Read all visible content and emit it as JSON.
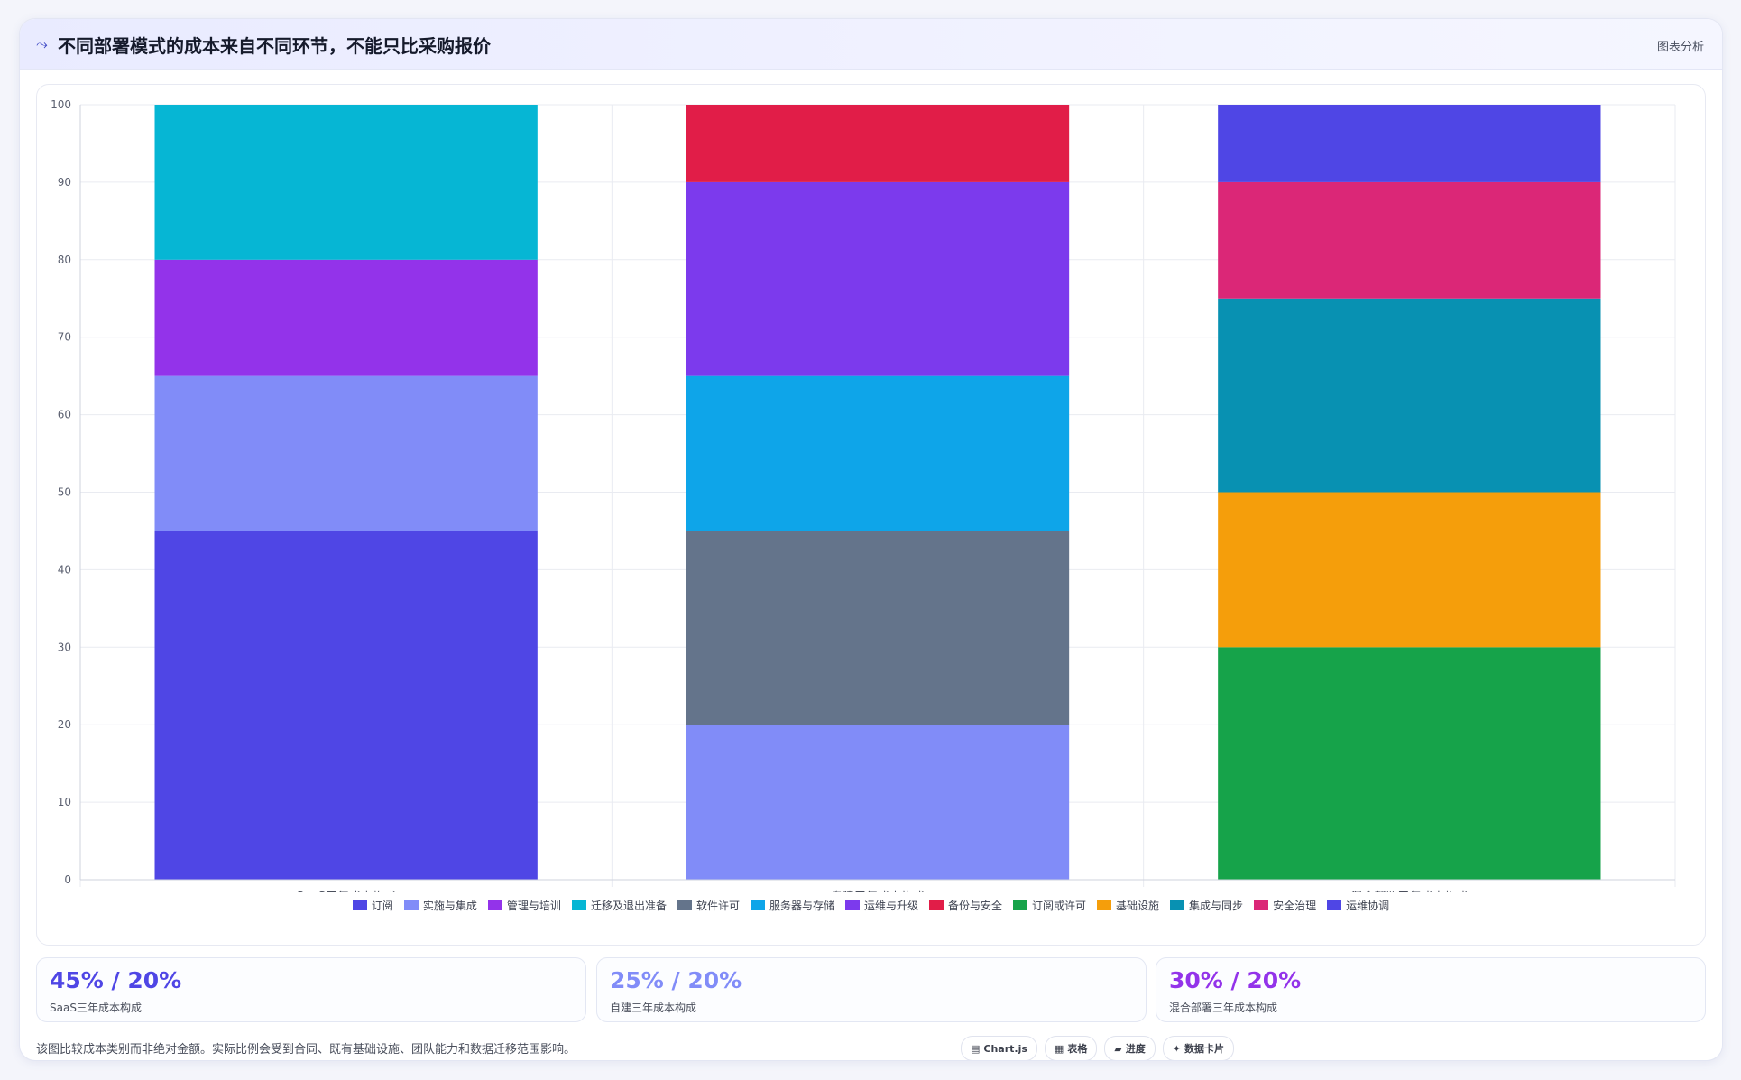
{
  "header": {
    "icon": "trend-line-icon",
    "title": "不同部署模式的成本来自不同环节，不能只比采购报价",
    "tag": "图表分析"
  },
  "chart_data": {
    "type": "bar",
    "stacked": true,
    "categories": [
      "SaaS三年成本构成",
      "自建三年成本构成",
      "混合部署三年成本构成"
    ],
    "ylim": [
      0,
      100
    ],
    "yticks": [
      0,
      10,
      20,
      30,
      40,
      50,
      60,
      70,
      80,
      90,
      100
    ],
    "grid": true,
    "legend_position": "bottom",
    "series": [
      {
        "name": "订阅",
        "color": "#4f46e5",
        "values": [
          45,
          0,
          0
        ]
      },
      {
        "name": "实施与集成",
        "color": "#818cf8",
        "values": [
          20,
          20,
          0
        ]
      },
      {
        "name": "管理与培训",
        "color": "#9333ea",
        "values": [
          15,
          0,
          0
        ]
      },
      {
        "name": "迁移及退出准备",
        "color": "#06b6d4",
        "values": [
          20,
          0,
          0
        ]
      },
      {
        "name": "软件许可",
        "color": "#64748b",
        "values": [
          0,
          25,
          0
        ]
      },
      {
        "name": "服务器与存储",
        "color": "#0ea5e9",
        "values": [
          0,
          20,
          0
        ]
      },
      {
        "name": "运维与升级",
        "color": "#7c3aed",
        "values": [
          0,
          25,
          0
        ]
      },
      {
        "name": "备份与安全",
        "color": "#e11d48",
        "values": [
          0,
          10,
          0
        ]
      },
      {
        "name": "订阅或许可",
        "color": "#16a34a",
        "values": [
          0,
          0,
          30
        ]
      },
      {
        "name": "基础设施",
        "color": "#f59e0b",
        "values": [
          0,
          0,
          20
        ]
      },
      {
        "name": "集成与同步",
        "color": "#0891b2",
        "values": [
          0,
          0,
          25
        ]
      },
      {
        "name": "安全治理",
        "color": "#db2777",
        "values": [
          0,
          0,
          15
        ]
      },
      {
        "name": "运维协调",
        "color": "#4f46e5",
        "values": [
          0,
          0,
          10
        ]
      }
    ]
  },
  "stats": [
    {
      "value": "45% / 20%",
      "label": "SaaS三年成本构成",
      "color": "#4f46e5"
    },
    {
      "value": "25% / 20%",
      "label": "自建三年成本构成",
      "color": "#818cf8"
    },
    {
      "value": "30% / 20%",
      "label": "混合部署三年成本构成",
      "color": "#9333ea"
    }
  ],
  "footnote": "该图比较成本类别而非绝对金额。实际比例会受到合同、既有基础设施、团队能力和数据迁移范围影响。",
  "pills": [
    {
      "icon": "chart-icon",
      "glyph": "▤",
      "label": "Chart.js"
    },
    {
      "icon": "table-icon",
      "glyph": "▦",
      "label": "表格"
    },
    {
      "icon": "progress-icon",
      "glyph": "▰",
      "label": "进度"
    },
    {
      "icon": "data-card-icon",
      "glyph": "✦",
      "label": "数据卡片"
    }
  ]
}
